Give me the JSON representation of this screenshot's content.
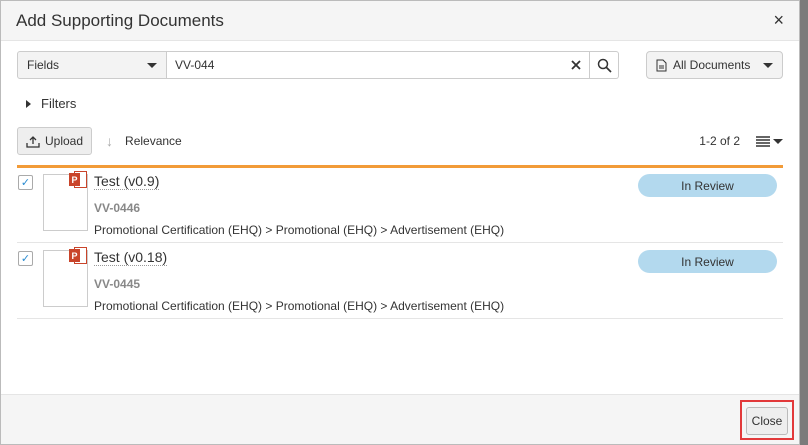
{
  "dialog": {
    "title": "Add Supporting Documents",
    "close_icon": "×"
  },
  "search": {
    "field_select": "Fields",
    "query": "VV-044",
    "doc_filter": "All Documents"
  },
  "filters_label": "Filters",
  "toolbar": {
    "upload_label": "Upload",
    "sort_label": "Relevance",
    "count": "1-2 of 2"
  },
  "colors": {
    "accent": "#f29b38",
    "badge": "#b3d9ee",
    "highlight": "#e2393a"
  },
  "documents": [
    {
      "title": "Test (v0.9)",
      "number": "VV-0446",
      "path": "Promotional Certification (EHQ) > Promotional (EHQ) > Advertisement (EHQ)",
      "status": "In Review",
      "checked": true,
      "icon": "powerpoint-icon"
    },
    {
      "title": "Test (v0.18)",
      "number": "VV-0445",
      "path": "Promotional Certification (EHQ) > Promotional (EHQ) > Advertisement (EHQ)",
      "status": "In Review",
      "checked": true,
      "icon": "powerpoint-icon"
    }
  ],
  "footer": {
    "close_label": "Close"
  }
}
